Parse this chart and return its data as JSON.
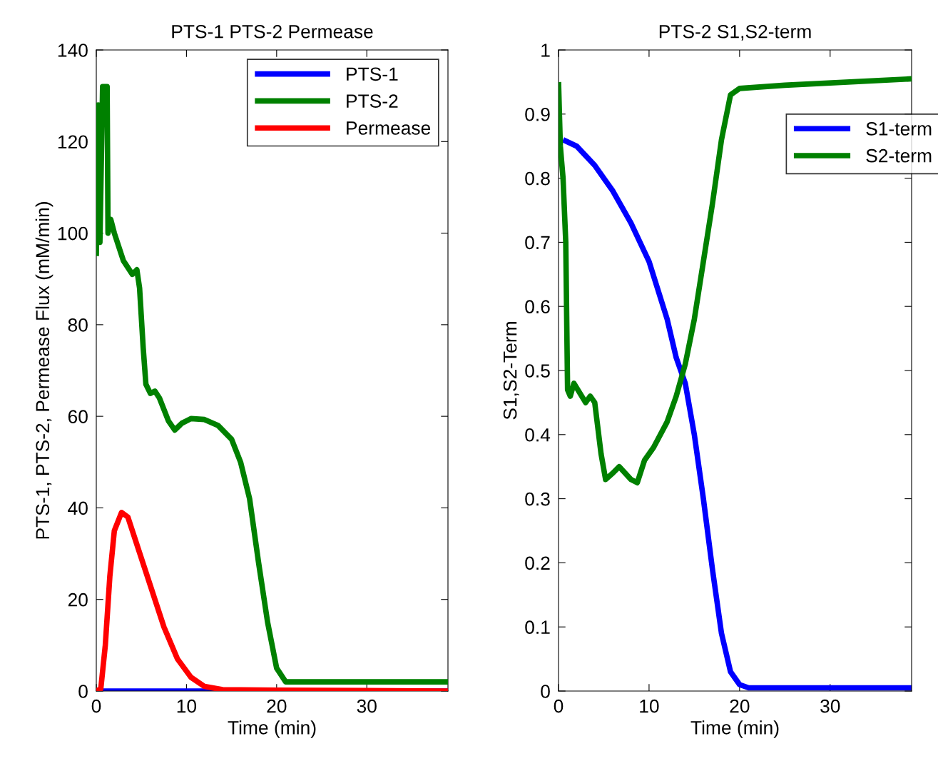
{
  "chart_data": [
    {
      "type": "line",
      "title": "PTS-1 PTS-2 Permease",
      "xlabel": "Time (min)",
      "ylabel": "PTS-1, PTS-2, Permease Flux (mM/min)",
      "xlim": [
        0,
        39
      ],
      "xticks": [
        0,
        10,
        20,
        30
      ],
      "ylim": [
        0,
        140
      ],
      "yticks": [
        0,
        20,
        40,
        60,
        80,
        100,
        120,
        140
      ],
      "legend": "top right",
      "grid": false,
      "series": [
        {
          "name": "PTS-1",
          "color": "#0000ff",
          "x": [
            0,
            39
          ],
          "values": [
            0,
            0
          ]
        },
        {
          "name": "PTS-2",
          "color": "#008000",
          "x": [
            0,
            0.2,
            0.4,
            0.7,
            1.2,
            1.3,
            1.6,
            2,
            3,
            4,
            4.5,
            4.8,
            5.2,
            5.5,
            6,
            6.5,
            7,
            8,
            8.7,
            9.5,
            10.5,
            12,
            13.5,
            15,
            16,
            17,
            18,
            19,
            20,
            21,
            39
          ],
          "values": [
            95,
            128,
            98,
            132,
            132,
            100,
            103,
            100,
            94,
            91,
            92,
            88,
            75,
            67,
            65,
            65.5,
            64,
            59,
            57,
            58.5,
            59.5,
            59.3,
            58,
            55,
            50,
            42,
            28,
            15,
            5,
            2,
            2
          ]
        },
        {
          "name": "Permease",
          "color": "#ff0000",
          "x": [
            0,
            0.5,
            1,
            1.5,
            2,
            2.8,
            3.5,
            4.5,
            6,
            7.5,
            9,
            10.5,
            12,
            14,
            20,
            39
          ],
          "values": [
            0,
            0.5,
            10,
            25,
            35,
            39,
            38,
            32,
            23,
            14,
            7,
            3,
            1,
            0.3,
            0.2,
            0
          ]
        }
      ]
    },
    {
      "type": "line",
      "title": "PTS-2 S1,S2-term",
      "xlabel": "Time (min)",
      "ylabel": "S1,S2-Term",
      "xlim": [
        0,
        39
      ],
      "xticks": [
        0,
        10,
        20,
        30
      ],
      "ylim": [
        0,
        1
      ],
      "yticks": [
        0,
        0.1,
        0.2,
        0.3,
        0.4,
        0.5,
        0.6,
        0.7,
        0.8,
        0.9,
        1
      ],
      "legend": "top right",
      "grid": false,
      "series": [
        {
          "name": "S1-term",
          "color": "#0000ff",
          "x": [
            0.5,
            2,
            4,
            6,
            8,
            10,
            12,
            13,
            14,
            15,
            16,
            17,
            18,
            19,
            20,
            21,
            39
          ],
          "values": [
            0.86,
            0.85,
            0.82,
            0.78,
            0.73,
            0.67,
            0.58,
            0.52,
            0.48,
            0.4,
            0.3,
            0.19,
            0.09,
            0.03,
            0.01,
            0.005,
            0.005
          ]
        },
        {
          "name": "S2-term",
          "color": "#008000",
          "x": [
            0,
            0.2,
            0.5,
            0.8,
            1,
            1.3,
            1.7,
            3,
            3.5,
            4,
            4.7,
            5.2,
            6,
            6.7,
            8,
            8.7,
            9.5,
            10.5,
            12,
            13,
            14,
            15,
            16,
            17,
            18,
            19,
            20,
            25,
            39
          ],
          "values": [
            0.95,
            0.85,
            0.8,
            0.7,
            0.47,
            0.46,
            0.48,
            0.45,
            0.46,
            0.45,
            0.37,
            0.33,
            0.34,
            0.35,
            0.33,
            0.325,
            0.36,
            0.38,
            0.42,
            0.46,
            0.51,
            0.58,
            0.67,
            0.76,
            0.86,
            0.93,
            0.94,
            0.945,
            0.955
          ]
        }
      ]
    }
  ]
}
